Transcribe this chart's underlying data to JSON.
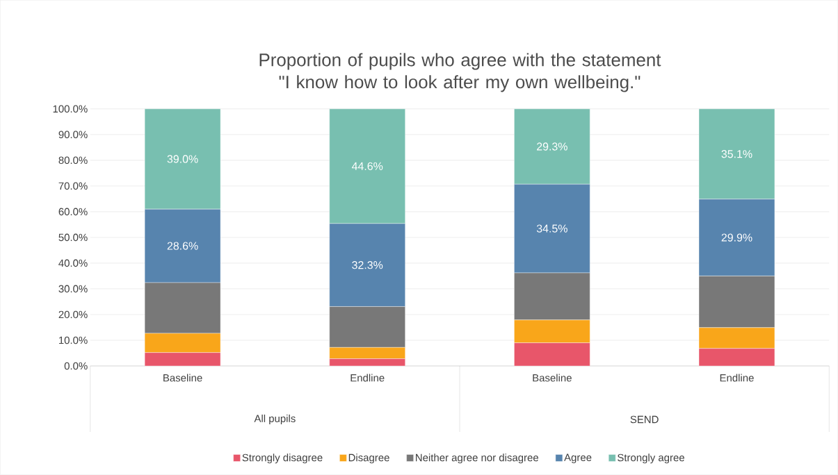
{
  "chart_data": {
    "type": "bar",
    "stacked": true,
    "title": "Proportion of pupils who agree with the statement \"I know how to look after my own wellbeing.\"",
    "categories": [
      "Baseline",
      "Endline",
      "Baseline",
      "Endline"
    ],
    "annotations": [
      "All pupils",
      "SEND"
    ],
    "series": [
      {
        "name": "Strongly disagree",
        "color": "#e8566a",
        "values": [
          5.2,
          2.8,
          9.0,
          6.8
        ]
      },
      {
        "name": "Disagree",
        "color": "#f9a61a",
        "values": [
          7.5,
          4.4,
          8.9,
          8.1
        ]
      },
      {
        "name": "Neither agree nor disagree",
        "color": "#787878",
        "values": [
          19.7,
          15.9,
          18.3,
          20.1
        ]
      },
      {
        "name": "Agree",
        "color": "#5784ae",
        "values": [
          28.6,
          32.3,
          34.5,
          29.9
        ],
        "value_labels": [
          "28.6%",
          "32.3%",
          "34.5%",
          "29.9%"
        ]
      },
      {
        "name": "Strongly agree",
        "color": "#78bfb0",
        "values": [
          39.0,
          44.6,
          29.3,
          35.1
        ],
        "value_labels": [
          "39.0%",
          "44.6%",
          "29.3%",
          "35.1%"
        ]
      }
    ],
    "ylim": [
      0,
      100
    ],
    "yticks": [
      {
        "value": 0,
        "label": "0.0%"
      },
      {
        "value": 10,
        "label": "10.0%"
      },
      {
        "value": 20,
        "label": "20.0%"
      },
      {
        "value": 30,
        "label": "30.0%"
      },
      {
        "value": 40,
        "label": "40.0%"
      },
      {
        "value": 50,
        "label": "50.0%"
      },
      {
        "value": 60,
        "label": "60.0%"
      },
      {
        "value": 70,
        "label": "70.0%"
      },
      {
        "value": 80,
        "label": "80.0%"
      },
      {
        "value": 90,
        "label": "90.0%"
      },
      {
        "value": 100,
        "label": "100.0%"
      }
    ],
    "grid": "y",
    "legend": "bottom"
  }
}
